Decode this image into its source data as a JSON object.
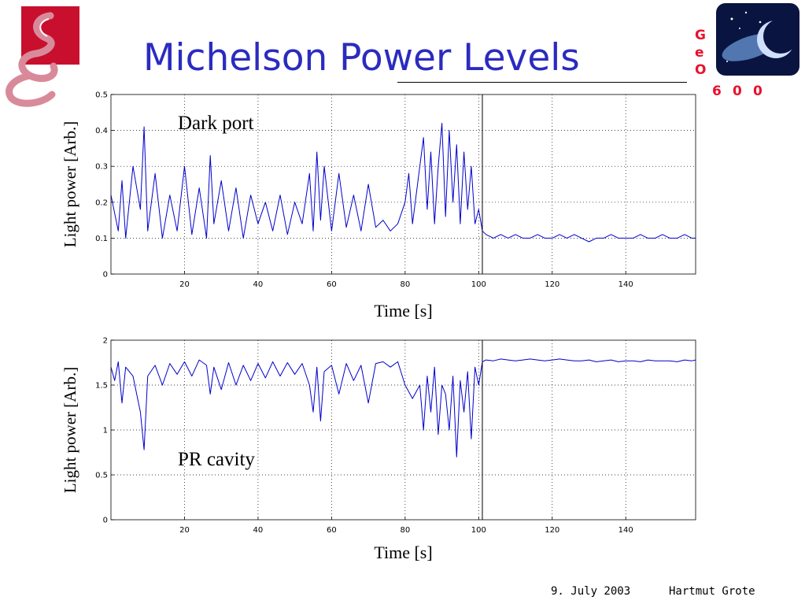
{
  "title": "Michelson Power Levels",
  "footer": {
    "date": "9. July 2003",
    "author": "Hartmut Grote"
  },
  "logos": {
    "left": "institution-logo",
    "right_letters": [
      "G",
      "e",
      "O"
    ],
    "right_numbers": [
      "6",
      "0",
      "0"
    ]
  },
  "colors": {
    "title": "#2b2bc0",
    "series": "#0000cc",
    "logo_red": "#c8102e",
    "logo_pink": "#d98a9a",
    "geo_red": "#e8112d"
  },
  "chart_data": [
    {
      "type": "line",
      "annotation": "Dark port",
      "xlabel": "Time [s]",
      "ylabel": "Light power [Arb.]",
      "xlim": [
        0,
        159
      ],
      "ylim": [
        0,
        0.5
      ],
      "xticks": [
        20,
        40,
        60,
        80,
        100,
        120,
        140
      ],
      "yticks": [
        0,
        0.1,
        0.2,
        0.3,
        0.4,
        0.5
      ],
      "ytick_labels": [
        "0",
        "0.1",
        "0.2",
        "0.3",
        "0.4",
        "0.5"
      ],
      "grid": true,
      "vline_x": 101,
      "series": [
        {
          "x": [
            0,
            2,
            3,
            4,
            6,
            8,
            9,
            10,
            12,
            14,
            16,
            18,
            20,
            22,
            24,
            26,
            27,
            28,
            30,
            32,
            34,
            36,
            38,
            40,
            42,
            44,
            46,
            48,
            50,
            52,
            54,
            55,
            56,
            57,
            58,
            60,
            62,
            64,
            66,
            68,
            70,
            72,
            74,
            76,
            78,
            80,
            81,
            82,
            84,
            85,
            86,
            87,
            88,
            89,
            90,
            91,
            92,
            93,
            94,
            95,
            96,
            97,
            98,
            99,
            100,
            101,
            102,
            104,
            106,
            108,
            110,
            112,
            114,
            116,
            118,
            120,
            122,
            124,
            126,
            128,
            130,
            132,
            134,
            136,
            138,
            140,
            142,
            144,
            146,
            148,
            150,
            152,
            154,
            156,
            158,
            159
          ],
          "y": [
            0.22,
            0.12,
            0.26,
            0.1,
            0.3,
            0.18,
            0.41,
            0.12,
            0.28,
            0.1,
            0.22,
            0.12,
            0.3,
            0.11,
            0.24,
            0.1,
            0.33,
            0.14,
            0.26,
            0.12,
            0.24,
            0.1,
            0.22,
            0.14,
            0.2,
            0.12,
            0.22,
            0.11,
            0.2,
            0.14,
            0.28,
            0.12,
            0.34,
            0.15,
            0.3,
            0.12,
            0.28,
            0.13,
            0.22,
            0.12,
            0.25,
            0.13,
            0.15,
            0.12,
            0.14,
            0.2,
            0.28,
            0.14,
            0.3,
            0.38,
            0.18,
            0.34,
            0.14,
            0.3,
            0.42,
            0.16,
            0.4,
            0.2,
            0.36,
            0.14,
            0.34,
            0.18,
            0.3,
            0.14,
            0.18,
            0.12,
            0.11,
            0.1,
            0.11,
            0.1,
            0.11,
            0.1,
            0.1,
            0.11,
            0.1,
            0.1,
            0.11,
            0.1,
            0.11,
            0.1,
            0.09,
            0.1,
            0.1,
            0.11,
            0.1,
            0.1,
            0.1,
            0.11,
            0.1,
            0.1,
            0.11,
            0.1,
            0.1,
            0.11,
            0.1,
            0.1
          ]
        }
      ]
    },
    {
      "type": "line",
      "annotation": "PR cavity",
      "xlabel": "Time [s]",
      "ylabel": "Light power [Arb.]",
      "xlim": [
        0,
        159
      ],
      "ylim": [
        0,
        2
      ],
      "xticks": [
        20,
        40,
        60,
        80,
        100,
        120,
        140
      ],
      "yticks": [
        0,
        0.5,
        1,
        1.5,
        2
      ],
      "ytick_labels": [
        "0",
        "0.5",
        "1",
        "1.5",
        "2"
      ],
      "grid": true,
      "vline_x": 101,
      "series": [
        {
          "x": [
            0,
            1,
            2,
            3,
            4,
            6,
            8,
            9,
            10,
            12,
            14,
            16,
            18,
            20,
            22,
            24,
            26,
            27,
            28,
            30,
            32,
            34,
            36,
            38,
            40,
            42,
            44,
            46,
            48,
            50,
            52,
            54,
            55,
            56,
            57,
            58,
            60,
            62,
            64,
            66,
            68,
            70,
            72,
            74,
            76,
            78,
            80,
            82,
            84,
            85,
            86,
            87,
            88,
            89,
            90,
            91,
            92,
            93,
            94,
            95,
            96,
            97,
            98,
            99,
            100,
            101,
            102,
            104,
            106,
            108,
            110,
            112,
            114,
            116,
            118,
            120,
            122,
            124,
            126,
            128,
            130,
            132,
            134,
            136,
            138,
            140,
            142,
            144,
            146,
            148,
            150,
            152,
            154,
            156,
            158,
            159
          ],
          "y": [
            1.7,
            1.55,
            1.76,
            1.3,
            1.7,
            1.6,
            1.2,
            0.78,
            1.6,
            1.72,
            1.5,
            1.74,
            1.62,
            1.76,
            1.6,
            1.78,
            1.72,
            1.4,
            1.7,
            1.45,
            1.75,
            1.5,
            1.72,
            1.55,
            1.74,
            1.58,
            1.76,
            1.6,
            1.75,
            1.62,
            1.74,
            1.5,
            1.2,
            1.7,
            1.1,
            1.65,
            1.72,
            1.4,
            1.74,
            1.55,
            1.72,
            1.3,
            1.74,
            1.76,
            1.7,
            1.76,
            1.5,
            1.35,
            1.5,
            1.0,
            1.6,
            1.2,
            1.7,
            0.95,
            1.5,
            1.4,
            1.0,
            1.6,
            0.7,
            1.55,
            1.2,
            1.65,
            0.9,
            1.7,
            1.5,
            1.76,
            1.78,
            1.77,
            1.79,
            1.78,
            1.77,
            1.78,
            1.79,
            1.78,
            1.77,
            1.78,
            1.79,
            1.78,
            1.77,
            1.77,
            1.78,
            1.76,
            1.77,
            1.78,
            1.76,
            1.77,
            1.77,
            1.76,
            1.78,
            1.77,
            1.77,
            1.77,
            1.76,
            1.78,
            1.77,
            1.78
          ]
        }
      ]
    }
  ]
}
